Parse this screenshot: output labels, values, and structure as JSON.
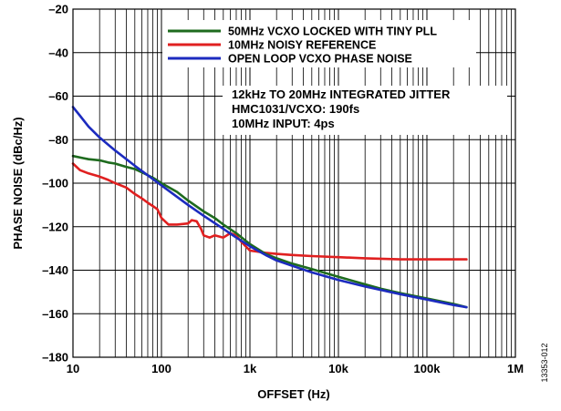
{
  "chart_data": {
    "type": "line",
    "xlabel": "OFFSET (Hz)",
    "ylabel": "PHASE NOISE (dBc/Hz)",
    "xscale": "log",
    "xlim": [
      10,
      1000000
    ],
    "ylim": [
      -180,
      -20
    ],
    "x_ticks": [
      10,
      100,
      1000,
      10000,
      100000,
      1000000
    ],
    "x_tick_labels": [
      "10",
      "100",
      "1k",
      "10k",
      "100k",
      "1M"
    ],
    "y_ticks": [
      -20,
      -40,
      -60,
      -80,
      -100,
      -120,
      -140,
      -160,
      -180
    ],
    "y_tick_labels": [
      "–20",
      "–40",
      "–60",
      "–80",
      "–100",
      "–120",
      "–140",
      "–160",
      "–180"
    ],
    "grid": true,
    "legend_position": "top-right",
    "series": [
      {
        "name": "50MHz VCXO LOCKED WITH TINY PLL",
        "color": "#1e6b1e",
        "x": [
          10,
          13,
          15,
          20,
          25,
          30,
          40,
          50,
          60,
          80,
          100,
          150,
          200,
          300,
          400,
          500,
          700,
          1000,
          1500,
          2000,
          3000,
          5000,
          10000,
          20000,
          30000,
          50000,
          100000,
          200000,
          280000
        ],
        "y": [
          -87.5,
          -88.5,
          -89,
          -89.5,
          -90.5,
          -91,
          -92.5,
          -93.5,
          -95,
          -97.5,
          -100,
          -104,
          -108,
          -113,
          -116,
          -119,
          -123,
          -128,
          -132.5,
          -134.5,
          -137,
          -139.5,
          -143,
          -146.5,
          -148.5,
          -150.5,
          -153,
          -155.5,
          -157
        ]
      },
      {
        "name": "10MHz NOISY REFERENCE",
        "color": "#e02020",
        "x": [
          10,
          12,
          15,
          20,
          25,
          30,
          40,
          50,
          60,
          70,
          80,
          90,
          100,
          120,
          150,
          200,
          220,
          250,
          280,
          300,
          350,
          400,
          500,
          600,
          700,
          800,
          1000,
          1500,
          2000,
          3000,
          5000,
          10000,
          20000,
          50000,
          100000,
          200000,
          280000
        ],
        "y": [
          -91,
          -94,
          -95.5,
          -97,
          -98.5,
          -100,
          -102,
          -105,
          -107,
          -109,
          -110.5,
          -112,
          -116,
          -119,
          -119,
          -118.5,
          -117,
          -117.5,
          -121,
          -124,
          -125,
          -124,
          -125,
          -123,
          -124,
          -127,
          -131,
          -132,
          -132.5,
          -133,
          -133.5,
          -134,
          -134.5,
          -135,
          -135,
          -135,
          -135
        ]
      },
      {
        "name": "OPEN LOOP VCXO PHASE NOISE",
        "color": "#1c2bbf",
        "x": [
          10,
          12,
          15,
          20,
          30,
          50,
          100,
          200,
          300,
          500,
          700,
          1000,
          1500,
          2000,
          3000,
          5000,
          10000,
          20000,
          50000,
          100000,
          200000,
          280000
        ],
        "y": [
          -65,
          -69,
          -74,
          -79,
          -85,
          -92,
          -101,
          -110,
          -115,
          -121,
          -125,
          -129,
          -133,
          -135.5,
          -138,
          -141,
          -144.5,
          -147.5,
          -151,
          -153.5,
          -156,
          -157
        ]
      }
    ],
    "annotation": [
      "12kHz TO 20MHz INTEGRATED JITTER",
      "HMC1031/VCXO: 190fs",
      "10MHz INPUT: 4ps"
    ],
    "figure_id": "13353-012"
  }
}
